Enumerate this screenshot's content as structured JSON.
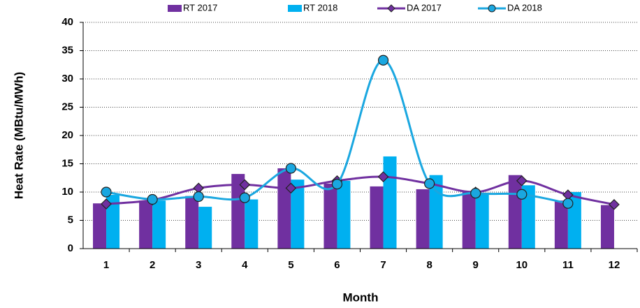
{
  "chart_data": {
    "type": "combo",
    "x_label": "Month",
    "y_label": "Heat Rate (MBtu/MWh)",
    "categories": [
      "1",
      "2",
      "3",
      "4",
      "5",
      "6",
      "7",
      "8",
      "9",
      "10",
      "11",
      "12"
    ],
    "series": [
      {
        "name": "RT 2017",
        "type": "bar",
        "color": "#7030a0",
        "values": [
          8.0,
          8.5,
          9.3,
          13.2,
          14.2,
          11.5,
          11.0,
          10.5,
          10.0,
          13.0,
          8.5,
          7.7
        ]
      },
      {
        "name": "RT 2018",
        "type": "bar",
        "color": "#00b0f0",
        "values": [
          9.5,
          8.5,
          7.4,
          8.7,
          12.2,
          12.0,
          16.3,
          13.0,
          9.8,
          11.2,
          10.0,
          null
        ]
      },
      {
        "name": "DA 2017",
        "type": "line",
        "marker": "diamond",
        "color": "#7030a0",
        "values": [
          7.9,
          8.6,
          10.7,
          11.3,
          10.7,
          12.0,
          12.7,
          11.5,
          10.0,
          12.0,
          9.5,
          7.8
        ]
      },
      {
        "name": "DA 2018",
        "type": "line",
        "marker": "circle",
        "color": "#1aa7e0",
        "values": [
          10.0,
          8.7,
          9.2,
          9.0,
          14.2,
          11.4,
          33.3,
          11.5,
          9.8,
          9.6,
          8.0,
          null
        ]
      }
    ],
    "ylim": [
      0,
      40
    ],
    "yticks": [
      0,
      5,
      10,
      15,
      20,
      25,
      30,
      35,
      40
    ],
    "grid": true,
    "smooth": true,
    "legend": "top"
  }
}
